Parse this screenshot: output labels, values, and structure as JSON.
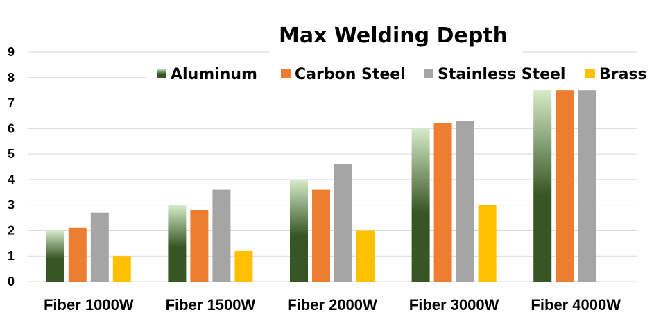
{
  "chart_data": {
    "type": "bar",
    "title": "Max Welding Depth",
    "xlabel": "",
    "ylabel": "",
    "ylim": [
      0,
      9
    ],
    "yticks": [
      0,
      1,
      2,
      3,
      4,
      5,
      6,
      7,
      8,
      9
    ],
    "grid": true,
    "legend_position": "top-right",
    "categories": [
      "Fiber 1000W",
      "Fiber 1500W",
      "Fiber 2000W",
      "Fiber 3000W",
      "Fiber 4000W"
    ],
    "series": [
      {
        "name": "Aluminum",
        "color": "#375623",
        "gradient_top": "#d6ebc9",
        "values": [
          2,
          3,
          4,
          6,
          7.5
        ]
      },
      {
        "name": "Carbon Steel",
        "color": "#ed7d31",
        "values": [
          2.1,
          2.8,
          3.6,
          6.2,
          7.5
        ]
      },
      {
        "name": "Stainless Steel",
        "color": "#a5a5a5",
        "values": [
          2.7,
          3.6,
          4.6,
          6.3,
          7.5
        ]
      },
      {
        "name": "Brass",
        "color": "#ffc000",
        "values": [
          1,
          1.2,
          2,
          3,
          null
        ]
      }
    ]
  }
}
